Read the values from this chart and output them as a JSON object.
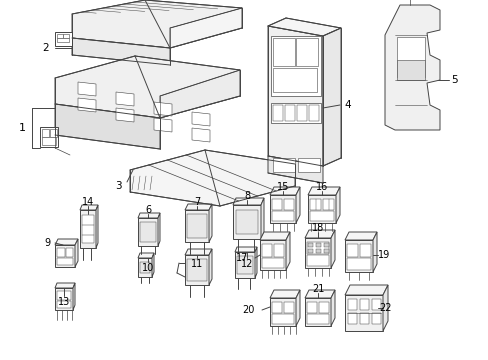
{
  "bg_color": "#ffffff",
  "line_color": "#444444",
  "label_color": "#000000",
  "fig_width": 4.89,
  "fig_height": 3.6,
  "dpi": 100
}
